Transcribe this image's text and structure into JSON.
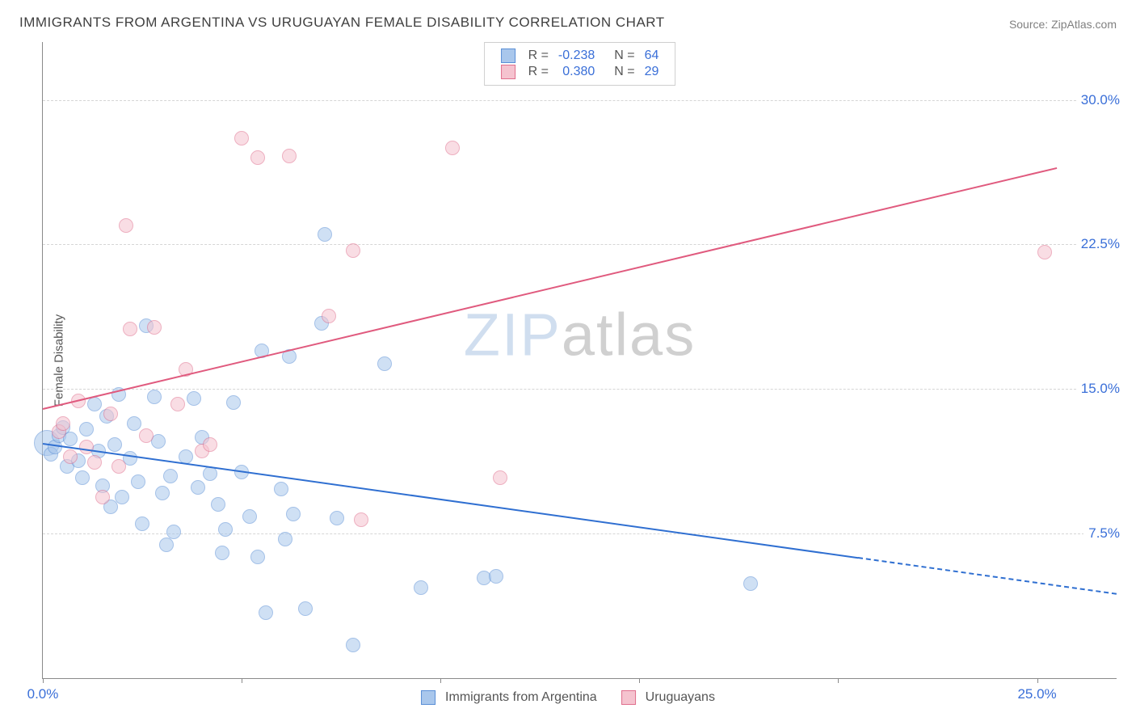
{
  "title": "IMMIGRANTS FROM ARGENTINA VS URUGUAYAN FEMALE DISABILITY CORRELATION CHART",
  "source_label": "Source: ",
  "source_name": "ZipAtlas.com",
  "ylabel": "Female Disability",
  "watermark_a": "ZIP",
  "watermark_b": "atlas",
  "chart": {
    "type": "scatter",
    "background_color": "#ffffff",
    "grid_color": "#d5d5d5",
    "axis_color": "#8a8a8a",
    "tick_label_color": "#3a6fd8",
    "xlim": [
      0,
      27
    ],
    "ylim": [
      0,
      33
    ],
    "xticks": [
      0,
      5,
      10,
      15,
      20,
      25
    ],
    "xtick_labels": {
      "0": "0.0%",
      "25": "25.0%"
    },
    "yticks": [
      7.5,
      15.0,
      22.5,
      30.0
    ],
    "ytick_labels": [
      "7.5%",
      "15.0%",
      "22.5%",
      "30.0%"
    ],
    "marker_radius": 9,
    "marker_large_radius": 16,
    "marker_opacity": 0.55,
    "series": [
      {
        "key": "argentina",
        "label": "Immigrants from Argentina",
        "color_fill": "#a9c7ec",
        "color_stroke": "#5a8fd6",
        "R": "-0.238",
        "N": "64",
        "trend": {
          "x1": 0,
          "y1": 12.2,
          "x2": 27,
          "y2": 4.4,
          "solid_until_x": 20.5,
          "color": "#2f6fd1"
        },
        "points": [
          {
            "x": 0.1,
            "y": 12.2,
            "r": 16
          },
          {
            "x": 0.2,
            "y": 11.6
          },
          {
            "x": 0.3,
            "y": 12.0
          },
          {
            "x": 0.4,
            "y": 12.6
          },
          {
            "x": 0.5,
            "y": 13.0
          },
          {
            "x": 0.6,
            "y": 11.0
          },
          {
            "x": 0.7,
            "y": 12.4
          },
          {
            "x": 0.9,
            "y": 11.3
          },
          {
            "x": 1.0,
            "y": 10.4
          },
          {
            "x": 1.1,
            "y": 12.9
          },
          {
            "x": 1.3,
            "y": 14.2
          },
          {
            "x": 1.4,
            "y": 11.8
          },
          {
            "x": 1.5,
            "y": 10.0
          },
          {
            "x": 1.6,
            "y": 13.6
          },
          {
            "x": 1.7,
            "y": 8.9
          },
          {
            "x": 1.8,
            "y": 12.1
          },
          {
            "x": 1.9,
            "y": 14.7
          },
          {
            "x": 2.0,
            "y": 9.4
          },
          {
            "x": 2.2,
            "y": 11.4
          },
          {
            "x": 2.3,
            "y": 13.2
          },
          {
            "x": 2.4,
            "y": 10.2
          },
          {
            "x": 2.5,
            "y": 8.0
          },
          {
            "x": 2.6,
            "y": 18.3
          },
          {
            "x": 2.8,
            "y": 14.6
          },
          {
            "x": 2.9,
            "y": 12.3
          },
          {
            "x": 3.0,
            "y": 9.6
          },
          {
            "x": 3.1,
            "y": 6.9
          },
          {
            "x": 3.2,
            "y": 10.5
          },
          {
            "x": 3.3,
            "y": 7.6
          },
          {
            "x": 3.6,
            "y": 11.5
          },
          {
            "x": 3.8,
            "y": 14.5
          },
          {
            "x": 3.9,
            "y": 9.9
          },
          {
            "x": 4.0,
            "y": 12.5
          },
          {
            "x": 4.2,
            "y": 10.6
          },
          {
            "x": 4.4,
            "y": 9.0
          },
          {
            "x": 4.5,
            "y": 6.5
          },
          {
            "x": 4.6,
            "y": 7.7
          },
          {
            "x": 4.8,
            "y": 14.3
          },
          {
            "x": 5.0,
            "y": 10.7
          },
          {
            "x": 5.2,
            "y": 8.4
          },
          {
            "x": 5.4,
            "y": 6.3
          },
          {
            "x": 5.5,
            "y": 17.0
          },
          {
            "x": 5.6,
            "y": 3.4
          },
          {
            "x": 6.0,
            "y": 9.8
          },
          {
            "x": 6.1,
            "y": 7.2
          },
          {
            "x": 6.2,
            "y": 16.7
          },
          {
            "x": 6.3,
            "y": 8.5
          },
          {
            "x": 6.6,
            "y": 3.6
          },
          {
            "x": 7.0,
            "y": 18.4
          },
          {
            "x": 7.1,
            "y": 23.0
          },
          {
            "x": 7.4,
            "y": 8.3
          },
          {
            "x": 7.8,
            "y": 1.7
          },
          {
            "x": 8.6,
            "y": 16.3
          },
          {
            "x": 9.5,
            "y": 4.7
          },
          {
            "x": 11.1,
            "y": 5.2
          },
          {
            "x": 11.4,
            "y": 5.3
          },
          {
            "x": 17.8,
            "y": 4.9
          }
        ]
      },
      {
        "key": "uruguay",
        "label": "Uruguayans",
        "color_fill": "#f5c3cf",
        "color_stroke": "#e06f8d",
        "R": "0.380",
        "N": "29",
        "trend": {
          "x1": 0,
          "y1": 14.0,
          "x2": 25.5,
          "y2": 26.5,
          "solid_until_x": 25.5,
          "color": "#e05a7e"
        },
        "points": [
          {
            "x": 0.4,
            "y": 12.8
          },
          {
            "x": 0.5,
            "y": 13.2
          },
          {
            "x": 0.7,
            "y": 11.5
          },
          {
            "x": 0.9,
            "y": 14.4
          },
          {
            "x": 1.1,
            "y": 12.0
          },
          {
            "x": 1.3,
            "y": 11.2
          },
          {
            "x": 1.5,
            "y": 9.4
          },
          {
            "x": 1.7,
            "y": 13.7
          },
          {
            "x": 1.9,
            "y": 11.0
          },
          {
            "x": 2.1,
            "y": 23.5
          },
          {
            "x": 2.2,
            "y": 18.1
          },
          {
            "x": 2.6,
            "y": 12.6
          },
          {
            "x": 2.8,
            "y": 18.2
          },
          {
            "x": 3.4,
            "y": 14.2
          },
          {
            "x": 3.6,
            "y": 16.0
          },
          {
            "x": 4.0,
            "y": 11.8
          },
          {
            "x": 4.2,
            "y": 12.1
          },
          {
            "x": 5.0,
            "y": 28.0
          },
          {
            "x": 5.4,
            "y": 27.0
          },
          {
            "x": 6.2,
            "y": 27.1
          },
          {
            "x": 7.2,
            "y": 18.8
          },
          {
            "x": 7.8,
            "y": 22.2
          },
          {
            "x": 8.0,
            "y": 8.2
          },
          {
            "x": 10.3,
            "y": 27.5
          },
          {
            "x": 11.5,
            "y": 10.4
          },
          {
            "x": 25.2,
            "y": 22.1
          }
        ]
      }
    ]
  },
  "legend_top": {
    "R_label": "R =",
    "N_label": "N =",
    "text_color_key": "#555555",
    "text_color_val": "#3a6fd8"
  }
}
